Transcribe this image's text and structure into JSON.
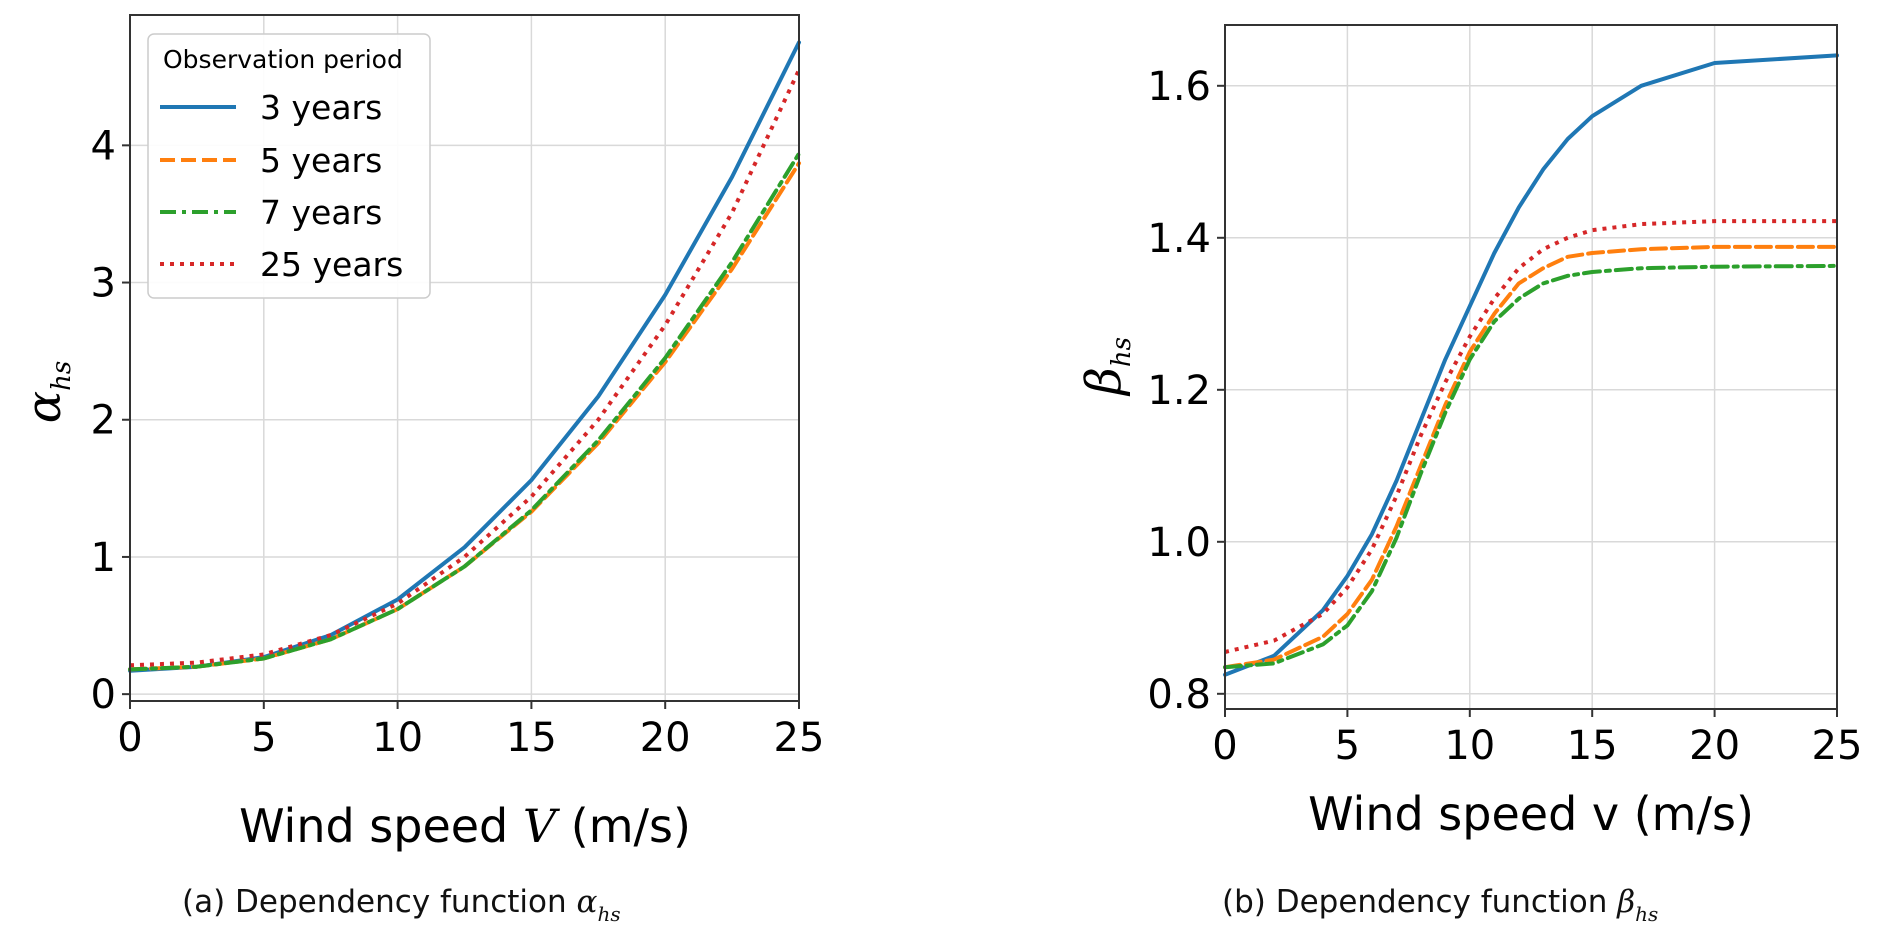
{
  "chart_data": [
    {
      "type": "line",
      "panel": "a",
      "xlabel": "Wind speed V (m/s)",
      "xlabel_parts": {
        "before": "Wind speed ",
        "var": "V",
        "after": " (m/s)"
      },
      "ylabel": "α_hs",
      "ylabel_parts": {
        "symbol": "α",
        "sub": "hs"
      },
      "xlim": [
        0,
        25
      ],
      "ylim": [
        -0.05,
        4.95
      ],
      "xticks": [
        0,
        5,
        10,
        15,
        20,
        25
      ],
      "yticks": [
        0,
        1,
        2,
        3,
        4
      ],
      "grid": true,
      "legend": {
        "title": "Observation period",
        "placement": "top-left"
      },
      "x": [
        0,
        2.5,
        5,
        7.5,
        10,
        12.5,
        15,
        17.5,
        20,
        22.5,
        25
      ],
      "series": [
        {
          "name": "3 years",
          "color": "#1f77b4",
          "style": "solid",
          "values": [
            0.17,
            0.2,
            0.27,
            0.43,
            0.69,
            1.07,
            1.56,
            2.17,
            2.91,
            3.77,
            4.75
          ]
        },
        {
          "name": "5 years",
          "color": "#ff7f0e",
          "style": "dashed",
          "values": [
            0.18,
            0.2,
            0.26,
            0.4,
            0.62,
            0.93,
            1.33,
            1.83,
            2.42,
            3.1,
            3.87
          ]
        },
        {
          "name": "7 years",
          "color": "#2ca02c",
          "style": "dashdot",
          "values": [
            0.18,
            0.2,
            0.26,
            0.4,
            0.62,
            0.93,
            1.34,
            1.85,
            2.45,
            3.15,
            3.94
          ]
        },
        {
          "name": "25 years",
          "color": "#d62728",
          "style": "dotted",
          "values": [
            0.21,
            0.23,
            0.29,
            0.43,
            0.66,
            1.0,
            1.44,
            2.0,
            2.69,
            3.51,
            4.55
          ]
        }
      ],
      "caption": {
        "text": "(a) Dependency function ",
        "symbol": "α",
        "sub": "hs"
      }
    },
    {
      "type": "line",
      "panel": "b",
      "xlabel": "Wind speed v (m/s)",
      "ylabel": "β_hs",
      "ylabel_parts": {
        "symbol": "β",
        "sub": "hs"
      },
      "xlim": [
        0,
        25
      ],
      "ylim": [
        0.78,
        1.68
      ],
      "xticks": [
        0,
        5,
        10,
        15,
        20,
        25
      ],
      "yticks": [
        0.8,
        1.0,
        1.2,
        1.4,
        1.6
      ],
      "ytick_labels": [
        "0.8",
        "1.0",
        "1.2",
        "1.4",
        "1.6"
      ],
      "grid": true,
      "x": [
        0,
        2,
        4,
        5,
        6,
        7,
        8,
        9,
        10,
        11,
        12,
        13,
        14,
        15,
        17,
        20,
        25
      ],
      "series": [
        {
          "name": "3 years",
          "color": "#1f77b4",
          "style": "solid",
          "values": [
            0.825,
            0.85,
            0.91,
            0.955,
            1.01,
            1.08,
            1.16,
            1.24,
            1.31,
            1.38,
            1.44,
            1.49,
            1.53,
            1.56,
            1.6,
            1.63,
            1.64
          ]
        },
        {
          "name": "5 years",
          "color": "#ff7f0e",
          "style": "dashed",
          "values": [
            0.835,
            0.845,
            0.875,
            0.905,
            0.95,
            1.02,
            1.1,
            1.18,
            1.25,
            1.3,
            1.34,
            1.36,
            1.375,
            1.38,
            1.385,
            1.388,
            1.388
          ]
        },
        {
          "name": "7 years",
          "color": "#2ca02c",
          "style": "dashdot",
          "values": [
            0.835,
            0.84,
            0.865,
            0.89,
            0.935,
            1.005,
            1.09,
            1.17,
            1.24,
            1.29,
            1.32,
            1.34,
            1.35,
            1.355,
            1.36,
            1.362,
            1.363
          ]
        },
        {
          "name": "25 years",
          "color": "#d62728",
          "style": "dotted",
          "values": [
            0.855,
            0.87,
            0.905,
            0.94,
            0.99,
            1.06,
            1.14,
            1.21,
            1.27,
            1.32,
            1.36,
            1.385,
            1.4,
            1.41,
            1.418,
            1.422,
            1.422
          ]
        }
      ],
      "caption": {
        "text": "(b) Dependency function ",
        "symbol": "β",
        "sub": "hs"
      }
    }
  ]
}
